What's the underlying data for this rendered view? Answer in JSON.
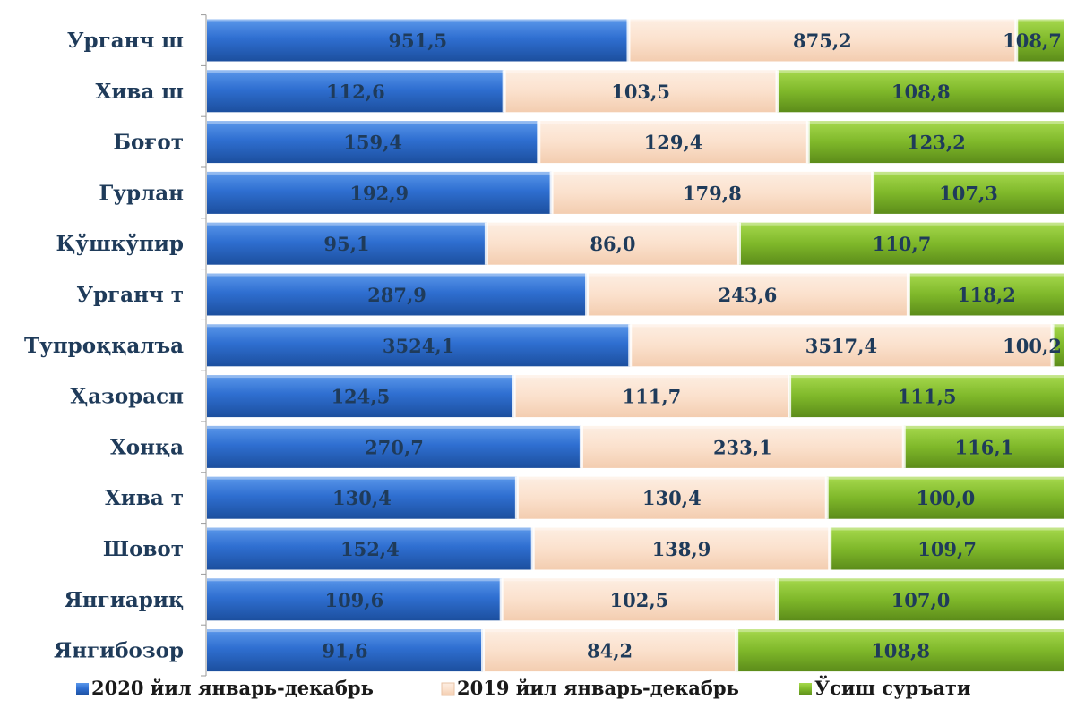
{
  "chart_data": {
    "type": "bar",
    "orientation": "horizontal",
    "stacked": "percent",
    "categories": [
      "Урганч ш",
      "Хива ш",
      "Боғот",
      "Гурлан",
      "Қўшкўпир",
      "Урганч т",
      "Тупроққалъа",
      "Ҳазорасп",
      "Хонқа",
      "Хива т",
      "Шовот",
      "Янгиариқ",
      "Янгибозор"
    ],
    "series": [
      {
        "name": "2020 йил январь-декабрь",
        "color": "#2f6fd1",
        "values": [
          951.5,
          112.6,
          159.4,
          192.9,
          95.1,
          287.9,
          3524.1,
          124.5,
          270.7,
          130.4,
          152.4,
          109.6,
          91.6
        ],
        "labels": [
          "951,5",
          "112,6",
          "159,4",
          "192,9",
          "95,1",
          "287,9",
          "3524,1",
          "124,5",
          "270,7",
          "130,4",
          "152,4",
          "109,6",
          "91,6"
        ]
      },
      {
        "name": "2019 йил январь-декабрь",
        "color": "#fbe1cd",
        "values": [
          875.2,
          103.5,
          129.4,
          179.8,
          86.0,
          243.6,
          3517.4,
          111.7,
          233.1,
          130.4,
          138.9,
          102.5,
          84.2
        ],
        "labels": [
          "875,2",
          "103,5",
          "129,4",
          "179,8",
          "86,0",
          "243,6",
          "3517,4",
          "111,7",
          "233,1",
          "130,4",
          "138,9",
          "102,5",
          "84,2"
        ]
      },
      {
        "name": "Ўсиш суръати",
        "color": "#7fb82a",
        "values": [
          108.7,
          108.8,
          123.2,
          107.3,
          110.7,
          118.2,
          100.2,
          111.5,
          116.1,
          100.0,
          109.7,
          107.0,
          108.8
        ],
        "labels": [
          "108,7",
          "108,8",
          "123,2",
          "107,3",
          "110,7",
          "118,2",
          "100,2",
          "111,5",
          "116,1",
          "100,0",
          "109,7",
          "107,0",
          "108,8"
        ]
      }
    ],
    "legend_position": "bottom",
    "grid": false
  }
}
